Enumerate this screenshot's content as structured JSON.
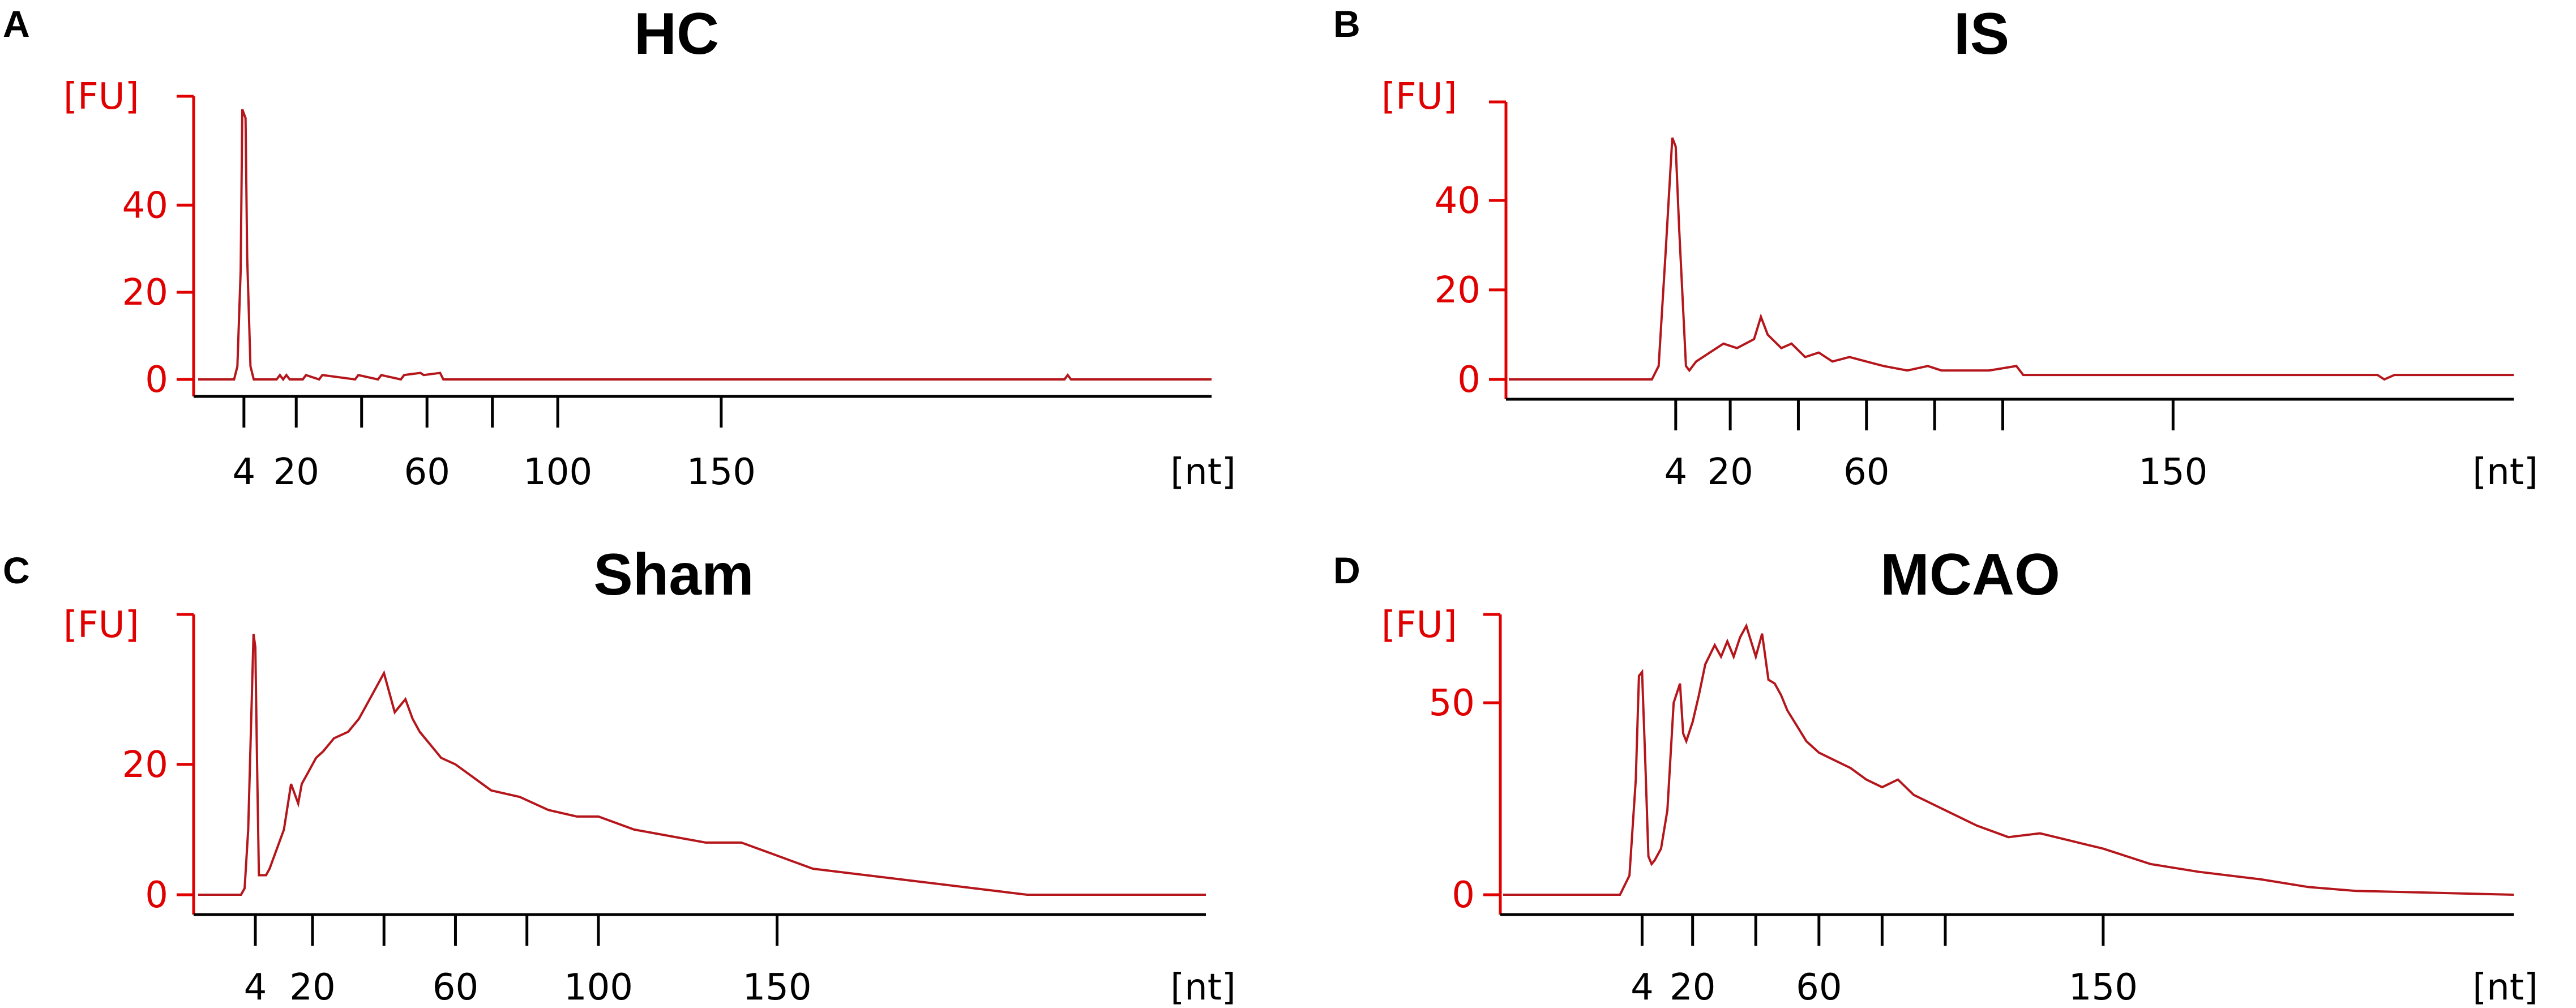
{
  "colors": {
    "trace": "#b4161b",
    "y_axis": "#e00000",
    "x_axis": "#000000"
  },
  "chart_data": [
    {
      "type": "line",
      "panel": "A",
      "title": "HC",
      "ylabel": "[FU]",
      "xlabel": "[nt]",
      "x_ticks": [
        4,
        20,
        40,
        60,
        80,
        100,
        150
      ],
      "x_tick_labels": [
        "4",
        "20",
        "",
        "60",
        "",
        "100",
        "150"
      ],
      "xlim": [
        -10,
        300
      ],
      "y_ticks": [
        0,
        20,
        40
      ],
      "y_tick_labels": [
        "0",
        "20",
        "40"
      ],
      "ylim": [
        -2,
        65
      ],
      "series": [
        {
          "x": [
            -10,
            1,
            2,
            3,
            3.5,
            4,
            4.5,
            5,
            6,
            7,
            14,
            15,
            16,
            17,
            18,
            22,
            23,
            27,
            28,
            38,
            39,
            45,
            46,
            52,
            53,
            58,
            59,
            64,
            65,
            255,
            256,
            257,
            300
          ],
          "y": [
            0,
            0,
            3,
            25,
            62,
            61,
            60,
            28,
            3,
            0,
            0,
            1,
            0,
            1,
            0,
            0,
            1,
            0,
            1,
            0,
            1,
            0,
            1,
            0,
            1,
            1.5,
            1,
            1.5,
            0,
            0,
            1,
            0,
            0
          ]
        }
      ]
    },
    {
      "type": "line",
      "panel": "B",
      "title": "IS",
      "ylabel": "[FU]",
      "xlabel": "[nt]",
      "x_ticks": [
        4,
        20,
        40,
        60,
        80,
        100,
        150
      ],
      "x_tick_labels": [
        "4",
        "20",
        "",
        "60",
        "",
        "",
        "150"
      ],
      "xlim": [
        -45,
        250
      ],
      "y_ticks": [
        0,
        20,
        40
      ],
      "y_tick_labels": [
        "0",
        "20",
        "40"
      ],
      "ylim": [
        -2,
        62
      ],
      "series": [
        {
          "x": [
            -45,
            -3,
            -1,
            1,
            3,
            4,
            5,
            7,
            8,
            10,
            14,
            18,
            22,
            27,
            29,
            31,
            35,
            38,
            42,
            46,
            50,
            55,
            60,
            65,
            72,
            78,
            82,
            88,
            96,
            104,
            106,
            110,
            210,
            212,
            215,
            250
          ],
          "y": [
            0,
            0,
            3,
            28,
            54,
            52,
            34,
            3,
            2,
            4,
            6,
            8,
            7,
            9,
            14,
            10,
            7,
            8,
            5,
            6,
            4,
            5,
            4,
            3,
            2,
            3,
            2,
            2,
            2,
            3,
            1,
            1,
            1,
            0,
            1,
            1
          ]
        }
      ]
    },
    {
      "type": "line",
      "panel": "C",
      "title": "Sham",
      "ylabel": "[FU]",
      "xlabel": "[nt]",
      "x_ticks": [
        4,
        20,
        40,
        60,
        80,
        100,
        150
      ],
      "x_tick_labels": [
        "4",
        "20",
        "",
        "60",
        "",
        "100",
        "150"
      ],
      "xlim": [
        -12,
        270
      ],
      "y_ticks": [
        0,
        20
      ],
      "y_tick_labels": [
        "0",
        "20"
      ],
      "ylim": [
        -1.5,
        43
      ],
      "series": [
        {
          "x": [
            -12,
            0,
            1,
            2,
            3,
            3.5,
            4,
            4.5,
            5,
            6,
            7,
            8,
            12,
            14,
            16,
            17,
            19,
            21,
            23,
            26,
            30,
            33,
            36,
            40,
            43,
            46,
            48,
            50,
            53,
            56,
            60,
            65,
            70,
            78,
            86,
            94,
            100,
            110,
            120,
            130,
            140,
            150,
            160,
            175,
            190,
            205,
            220,
            270
          ],
          "y": [
            0,
            0,
            1,
            10,
            30,
            40,
            38,
            20,
            3,
            3,
            3,
            4,
            10,
            17,
            14,
            17,
            19,
            21,
            22,
            24,
            25,
            27,
            30,
            34,
            28,
            30,
            27,
            25,
            23,
            21,
            20,
            18,
            16,
            15,
            13,
            12,
            12,
            10,
            9,
            8,
            8,
            6,
            4,
            3,
            2,
            1,
            0,
            0
          ]
        }
      ]
    },
    {
      "type": "line",
      "panel": "D",
      "title": "MCAO",
      "ylabel": "[FU]",
      "xlabel": "[nt]",
      "x_ticks": [
        4,
        20,
        40,
        60,
        80,
        100,
        150
      ],
      "x_tick_labels": [
        "4",
        "20",
        "",
        "60",
        "",
        "",
        "150"
      ],
      "xlim": [
        -40,
        280
      ],
      "y_ticks": [
        0,
        50
      ],
      "y_tick_labels": [
        "0",
        "50"
      ],
      "ylim": [
        -3,
        73
      ],
      "series": [
        {
          "x": [
            -40,
            -3,
            0,
            2,
            3,
            4,
            5,
            6,
            7,
            8,
            10,
            12,
            14,
            16,
            17,
            18,
            20,
            22,
            24,
            27,
            29,
            31,
            33,
            35,
            37,
            40,
            42,
            44,
            46,
            48,
            50,
            53,
            56,
            60,
            65,
            70,
            75,
            80,
            85,
            90,
            100,
            110,
            120,
            130,
            140,
            150,
            165,
            180,
            200,
            215,
            230,
            280
          ],
          "y": [
            0,
            0,
            5,
            30,
            57,
            58,
            35,
            10,
            8,
            9,
            12,
            22,
            50,
            55,
            42,
            40,
            45,
            52,
            60,
            65,
            62,
            66,
            62,
            67,
            70,
            62,
            68,
            56,
            55,
            52,
            48,
            44,
            40,
            37,
            35,
            33,
            30,
            28,
            30,
            26,
            22,
            18,
            15,
            16,
            14,
            12,
            8,
            6,
            4,
            2,
            1,
            0
          ]
        }
      ]
    }
  ]
}
